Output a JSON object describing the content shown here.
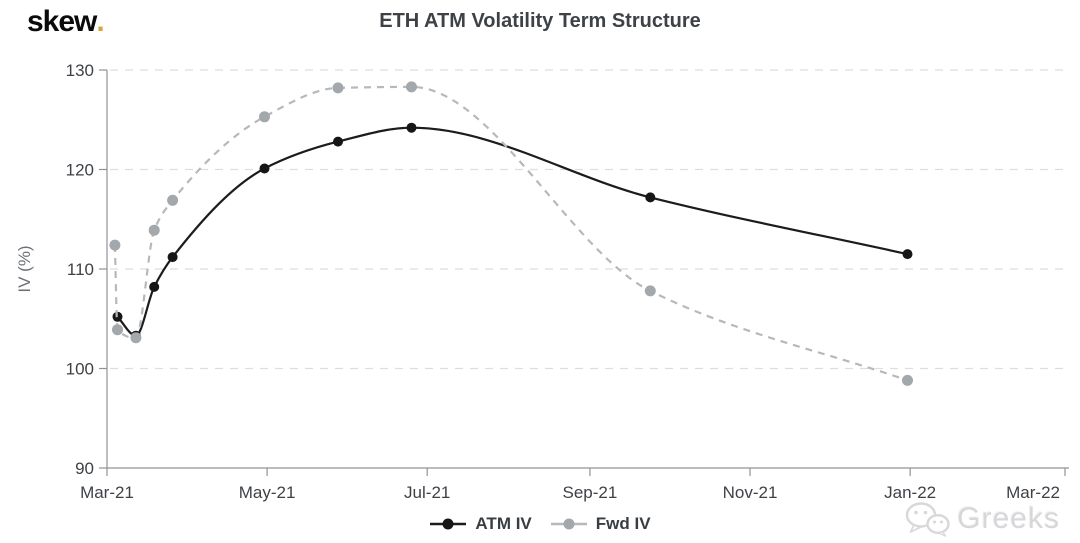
{
  "brand": {
    "name": "skew",
    "dot": ".",
    "logo_color": "#0b0b0b",
    "dot_color": "#d9a53f"
  },
  "header": {
    "title": "ETH ATM Volatility Term Structure"
  },
  "watermark": {
    "label": "Greeks",
    "icon": "wechat-icon"
  },
  "chart_data": {
    "type": "line",
    "title": "ETH ATM Volatility Term Structure",
    "xlabel": "",
    "ylabel": "IV (%)",
    "ylim": [
      90,
      130
    ],
    "y_ticks": [
      90,
      100,
      110,
      120,
      130
    ],
    "x_range": [
      "2021-03-01",
      "2022-03-01"
    ],
    "x_ticks": [
      {
        "label": "Mar-21",
        "date": "2021-03-01"
      },
      {
        "label": "May-21",
        "date": "2021-05-01"
      },
      {
        "label": "Jul-21",
        "date": "2021-07-01"
      },
      {
        "label": "Sep-21",
        "date": "2021-09-01"
      },
      {
        "label": "Nov-21",
        "date": "2021-11-01"
      },
      {
        "label": "Jan-22",
        "date": "2022-01-01"
      },
      {
        "label": "Mar-22",
        "date": "2022-03-01"
      }
    ],
    "grid": {
      "horizontal": true,
      "style": "dashed",
      "color": "#dcdee1"
    },
    "axis_color": "#8f9398",
    "tick_label_color": "#3e4247",
    "axis_title_color": "#6d7176",
    "legend_position": "bottom-center",
    "series": [
      {
        "name": "ATM IV",
        "line_style": "solid",
        "line_color": "#1c1c1c",
        "marker_color": "#161616",
        "points": [
          {
            "date": "2021-03-05",
            "iv": 105.2
          },
          {
            "date": "2021-03-12",
            "iv": 103.3
          },
          {
            "date": "2021-03-19",
            "iv": 108.2
          },
          {
            "date": "2021-03-26",
            "iv": 111.2
          },
          {
            "date": "2021-04-30",
            "iv": 120.1
          },
          {
            "date": "2021-05-28",
            "iv": 122.8
          },
          {
            "date": "2021-06-25",
            "iv": 124.2
          },
          {
            "date": "2021-09-24",
            "iv": 117.2
          },
          {
            "date": "2021-12-31",
            "iv": 111.5
          }
        ]
      },
      {
        "name": "Fwd IV",
        "line_style": "dashed",
        "line_color": "#b5b9be",
        "marker_color": "#a3a8ad",
        "points": [
          {
            "date": "2021-03-04",
            "iv": 112.4
          },
          {
            "date": "2021-03-05",
            "iv": 103.9
          },
          {
            "date": "2021-03-12",
            "iv": 103.1
          },
          {
            "date": "2021-03-19",
            "iv": 113.9
          },
          {
            "date": "2021-03-26",
            "iv": 116.9
          },
          {
            "date": "2021-04-30",
            "iv": 125.3
          },
          {
            "date": "2021-05-28",
            "iv": 128.2
          },
          {
            "date": "2021-06-25",
            "iv": 128.3
          },
          {
            "date": "2021-09-24",
            "iv": 107.8
          },
          {
            "date": "2021-12-31",
            "iv": 98.8
          }
        ]
      }
    ]
  }
}
